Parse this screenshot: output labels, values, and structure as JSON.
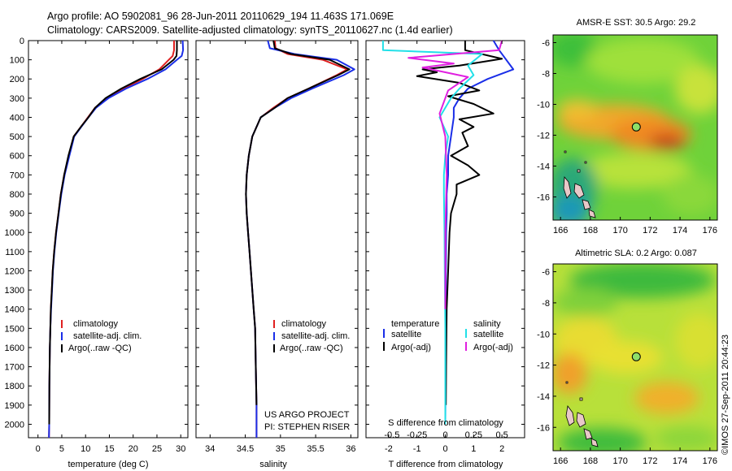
{
  "header": {
    "line1": "Argo profile: AO 5902081_96 28-Jun-2011 20110629_194 11.463S 171.069E",
    "line2": "Climatology: CARS2009. Satellite-adjusted climatology: synTS_20110627.nc (1.4d earlier)"
  },
  "colors": {
    "climatology": "#e02020",
    "satellite": "#1a2ee8",
    "argo": "#000000",
    "satellite_salinity": "#22e0e8",
    "argo_salinity": "#e020e0"
  },
  "chart_data": [
    {
      "type": "line",
      "id": "temperature",
      "xlabel": "temperature (deg C)",
      "ylabel": "",
      "xlim": [
        -2,
        31.5
      ],
      "ylim": [
        2070,
        0
      ],
      "xticks": [
        0,
        5,
        10,
        15,
        20,
        25,
        30
      ],
      "yticks": [
        0,
        100,
        200,
        300,
        400,
        500,
        600,
        700,
        800,
        900,
        1000,
        1100,
        1200,
        1300,
        1400,
        1500,
        1600,
        1700,
        1800,
        1900,
        2000
      ],
      "legend": [
        "climatology",
        "satellite-adj. clim.",
        "Argo(..raw -QC)"
      ],
      "legend_location": "lower-center",
      "series": [
        {
          "name": "climatology",
          "role": "climatology",
          "x": [
            28.6,
            28.6,
            28.3,
            27.5,
            25.5,
            22,
            18,
            14.5,
            12,
            10.5,
            9,
            7.5,
            6.5,
            5.5,
            4.8,
            4.3,
            3.8,
            3.4,
            3.1,
            2.9,
            2.7,
            2.6,
            2.5,
            2.4,
            2.35,
            2.3
          ],
          "y": [
            0,
            50,
            80,
            100,
            150,
            200,
            250,
            300,
            350,
            400,
            450,
            500,
            600,
            700,
            800,
            900,
            1000,
            1100,
            1200,
            1300,
            1400,
            1500,
            1600,
            1800,
            2000,
            2070
          ]
        },
        {
          "name": "satellite-adj. clim.",
          "role": "satellite",
          "x": [
            30.4,
            30.5,
            30.2,
            29.2,
            26.8,
            23,
            18.5,
            14.8,
            12.2,
            10.6,
            9.1,
            7.6,
            6.6,
            5.6,
            4.9,
            4.35,
            3.85,
            3.45,
            3.15,
            2.95,
            2.75,
            2.6,
            2.5,
            2.4,
            2.35,
            2.3
          ],
          "y": [
            0,
            50,
            80,
            100,
            150,
            200,
            250,
            300,
            350,
            400,
            450,
            500,
            600,
            700,
            800,
            900,
            1000,
            1100,
            1200,
            1300,
            1400,
            1500,
            1600,
            1800,
            2000,
            2070
          ]
        },
        {
          "name": "Argo(..raw -QC)",
          "role": "argo",
          "x": [
            29.2,
            29.2,
            29.1,
            28.5,
            26,
            21.5,
            17.5,
            14.2,
            12,
            10.6,
            9,
            7.5,
            6.4,
            5.5,
            4.8,
            4.3,
            3.8,
            3.4,
            3.1,
            2.9,
            2.7,
            2.6,
            2.5,
            2.4,
            2.35
          ],
          "y": [
            0,
            50,
            80,
            100,
            150,
            200,
            250,
            300,
            350,
            400,
            450,
            500,
            600,
            700,
            800,
            900,
            1000,
            1100,
            1200,
            1300,
            1400,
            1500,
            1600,
            1800,
            2000
          ]
        }
      ]
    },
    {
      "type": "line",
      "id": "salinity",
      "xlabel": "salinity",
      "ylabel": "",
      "xlim": [
        33.8,
        36.1
      ],
      "ylim": [
        2070,
        0
      ],
      "xticks": [
        34,
        34.5,
        35,
        35.5,
        36
      ],
      "legend": [
        "climatology",
        "satellite-adj. clim.",
        "Argo(..raw -QC)"
      ],
      "legend_location": "lower-right",
      "annotations": [
        "US ARGO PROJECT",
        "PI: STEPHEN RISER"
      ],
      "series": [
        {
          "name": "climatology",
          "role": "climatology",
          "x": [
            34.92,
            34.93,
            35.1,
            35.6,
            35.95,
            35.8,
            35.4,
            35.1,
            34.9,
            34.72,
            34.6,
            34.55,
            34.52,
            34.51,
            34.52,
            34.54,
            34.56,
            34.58,
            34.6,
            34.62,
            34.64,
            34.65,
            34.66,
            34.66
          ],
          "y": [
            0,
            40,
            70,
            100,
            150,
            180,
            250,
            300,
            350,
            400,
            500,
            600,
            700,
            800,
            900,
            1000,
            1100,
            1200,
            1300,
            1400,
            1500,
            1700,
            1900,
            2070
          ]
        },
        {
          "name": "satellite-adj. clim.",
          "role": "satellite",
          "x": [
            34.82,
            34.85,
            35.2,
            35.8,
            36.05,
            35.9,
            35.45,
            35.15,
            34.92,
            34.72,
            34.6,
            34.55,
            34.52,
            34.51,
            34.52,
            34.54,
            34.56,
            34.58,
            34.6,
            34.62,
            34.64,
            34.65,
            34.66,
            34.66
          ],
          "y": [
            0,
            40,
            70,
            100,
            150,
            180,
            250,
            300,
            350,
            400,
            500,
            600,
            700,
            800,
            900,
            1000,
            1100,
            1200,
            1300,
            1400,
            1500,
            1700,
            1900,
            2070
          ]
        },
        {
          "name": "Argo(..raw -QC)",
          "role": "argo",
          "x": [
            34.9,
            34.92,
            35.15,
            35.7,
            35.98,
            35.82,
            35.4,
            35.1,
            34.92,
            34.72,
            34.6,
            34.55,
            34.52,
            34.51,
            34.52,
            34.54,
            34.56,
            34.58,
            34.6,
            34.62,
            34.64,
            34.65,
            34.66
          ],
          "y": [
            0,
            40,
            70,
            100,
            150,
            180,
            250,
            300,
            350,
            400,
            500,
            600,
            700,
            800,
            900,
            1000,
            1100,
            1200,
            1300,
            1400,
            1500,
            1700,
            1900
          ]
        }
      ]
    },
    {
      "type": "line",
      "id": "difference",
      "xlabel": "T difference from climatology",
      "x2label": "S difference from climatology",
      "ylabel": "",
      "xlim": [
        -2.8,
        2.8
      ],
      "ylim": [
        2070,
        0
      ],
      "xticks": [
        -2,
        -1,
        0,
        1,
        2
      ],
      "x2ticks": [
        "-0.5",
        "-0.25",
        "0",
        "0.25",
        "0.5"
      ],
      "legend": [
        {
          "heading": "temperature",
          "entries": [
            "satellite",
            "Argo(-adj)"
          ]
        },
        {
          "heading": "salinity",
          "entries": [
            "satellite",
            "Argo(-adj)"
          ]
        }
      ],
      "legend_location": "lower-center",
      "series": [
        {
          "name": "satellite",
          "group": "temperature",
          "role": "satellite",
          "x": [
            1.7,
            1.9,
            2.4,
            1.5,
            0.8,
            0.5,
            0.3,
            0.3,
            0.2,
            0.1,
            0.1,
            0.05,
            0.05,
            0.03,
            0.02,
            0.02,
            0.01,
            0.01,
            0.0
          ],
          "y": [
            0,
            50,
            150,
            200,
            250,
            300,
            350,
            400,
            500,
            600,
            700,
            800,
            900,
            1000,
            1200,
            1400,
            1600,
            1800,
            2000
          ]
        },
        {
          "name": "Argo(-adj)",
          "group": "temperature",
          "role": "argo",
          "x": [
            0.7,
            0.7,
            2.0,
            0.5,
            -0.8,
            -0.3,
            -1.0,
            0.5,
            1.2,
            0.1,
            1.0,
            1.7,
            0.5,
            1.0,
            0.6,
            0.8,
            0.2,
            0.8,
            1.2,
            0.4,
            0.4,
            0.2,
            0.15,
            0.1,
            0.05,
            0.03,
            0.02
          ],
          "y": [
            0,
            50,
            95,
            130,
            150,
            165,
            185,
            220,
            260,
            290,
            330,
            380,
            410,
            450,
            480,
            550,
            600,
            650,
            700,
            750,
            800,
            900,
            1000,
            1200,
            1400,
            1700,
            1900
          ]
        },
        {
          "name": "satellite",
          "group": "salinity",
          "role": "satellite_salinity",
          "x": [
            -2.2,
            -2.2,
            1.3,
            0.8,
            1.0,
            0.5,
            0.2,
            -0.2,
            0.1,
            0.0,
            -0.05,
            -0.05,
            -0.03,
            -0.02,
            0.0,
            0.0,
            0.0
          ],
          "y": [
            0,
            50,
            70,
            130,
            180,
            250,
            300,
            400,
            500,
            600,
            700,
            800,
            1000,
            1200,
            1500,
            1800,
            2000
          ]
        },
        {
          "name": "Argo(-adj)",
          "group": "salinity",
          "role": "argo_salinity",
          "x": [
            2.0,
            1.9,
            -1.3,
            0.3,
            -0.8,
            0.8,
            0.1,
            -0.2,
            0.0,
            0.05,
            0.0,
            0.0
          ],
          "y": [
            0,
            50,
            90,
            120,
            140,
            190,
            260,
            380,
            500,
            700,
            1000,
            1400
          ]
        }
      ]
    },
    {
      "type": "heatmap",
      "id": "sst-map",
      "title": "AMSR-E SST: 30.5 Argo: 29.2",
      "xlim": [
        165.5,
        176.5
      ],
      "ylim": [
        -17.5,
        -5.5
      ],
      "xticks": [
        166,
        168,
        170,
        172,
        174,
        176
      ],
      "yticks": [
        -6,
        -8,
        -10,
        -12,
        -14,
        -16
      ],
      "marker": {
        "lon": 171.069,
        "lat": -11.463
      }
    },
    {
      "type": "heatmap",
      "id": "sla-map",
      "title": "Altimetric SLA: 0.2 Argo: 0.087",
      "xlim": [
        165.5,
        176.5
      ],
      "ylim": [
        -17.5,
        -5.5
      ],
      "xticks": [
        166,
        168,
        170,
        172,
        174,
        176
      ],
      "yticks": [
        -6,
        -8,
        -10,
        -12,
        -14,
        -16
      ],
      "marker": {
        "lon": 171.069,
        "lat": -11.463
      }
    }
  ],
  "footer": {
    "credit": "©IMOS 27-Sep-2011 20:44:23"
  }
}
